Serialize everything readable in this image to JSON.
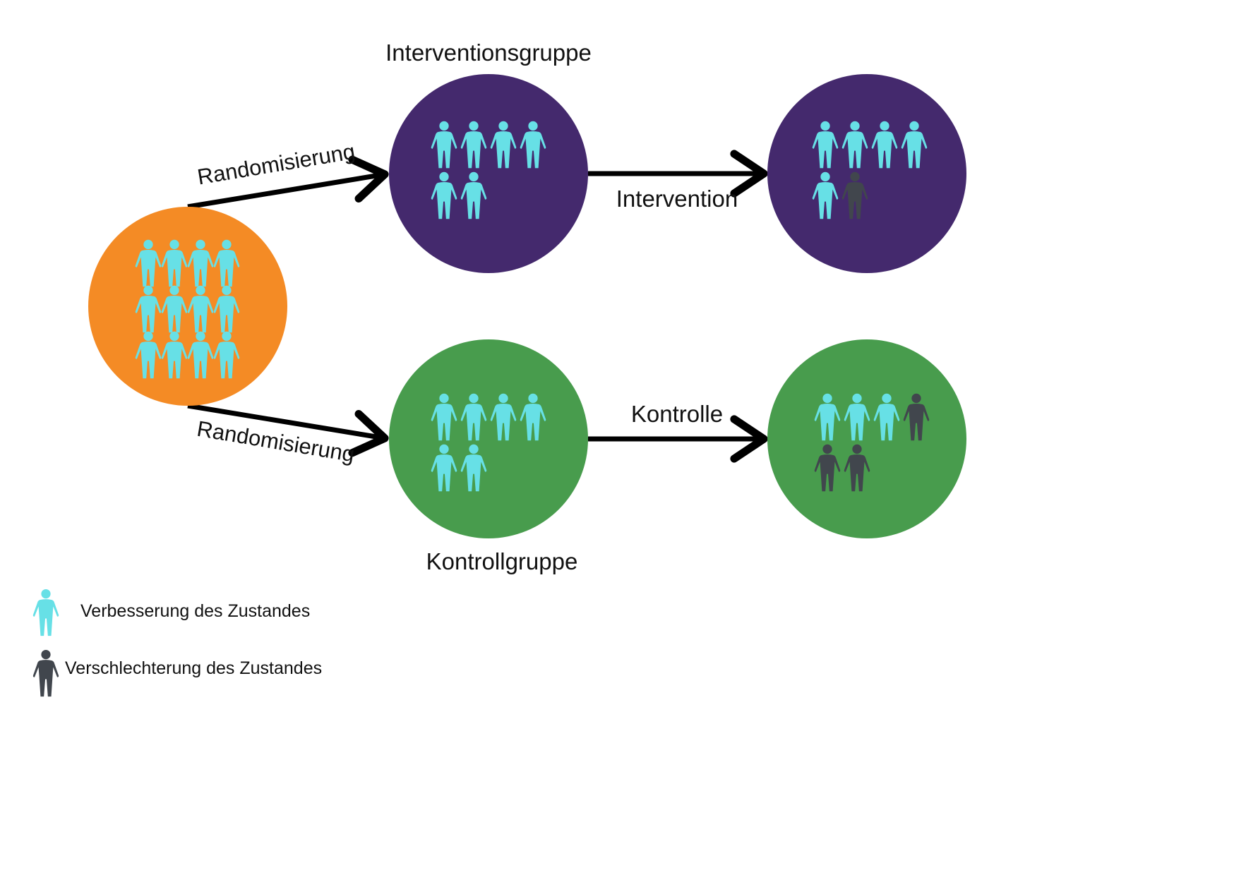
{
  "colors": {
    "improved": "#67e0e6",
    "worsened": "#41464d",
    "population": "#f48b25",
    "intervention": "#44296d",
    "control": "#489c4d",
    "arrow": "#000000"
  },
  "labels": {
    "intervention_group": "Interventionsgruppe",
    "control_group": "Kontrollgruppe",
    "randomization_top": "Randomisierung",
    "randomization_bottom": "Randomisierung",
    "intervention": "Intervention",
    "control": "Kontrolle"
  },
  "groups": {
    "population": {
      "improved": 12,
      "worsened": 0
    },
    "intervention_before": {
      "improved": 6,
      "worsened": 0
    },
    "intervention_after": {
      "improved": 5,
      "worsened": 1
    },
    "control_before": {
      "improved": 6,
      "worsened": 0
    },
    "control_after": {
      "improved": 3,
      "worsened": 3
    }
  },
  "legend": [
    {
      "icon": "person-icon",
      "status": "improved",
      "label": "Verbesserung des Zustandes"
    },
    {
      "icon": "person-icon",
      "status": "worsened",
      "label": "Verschlechterung des Zustandes"
    }
  ]
}
